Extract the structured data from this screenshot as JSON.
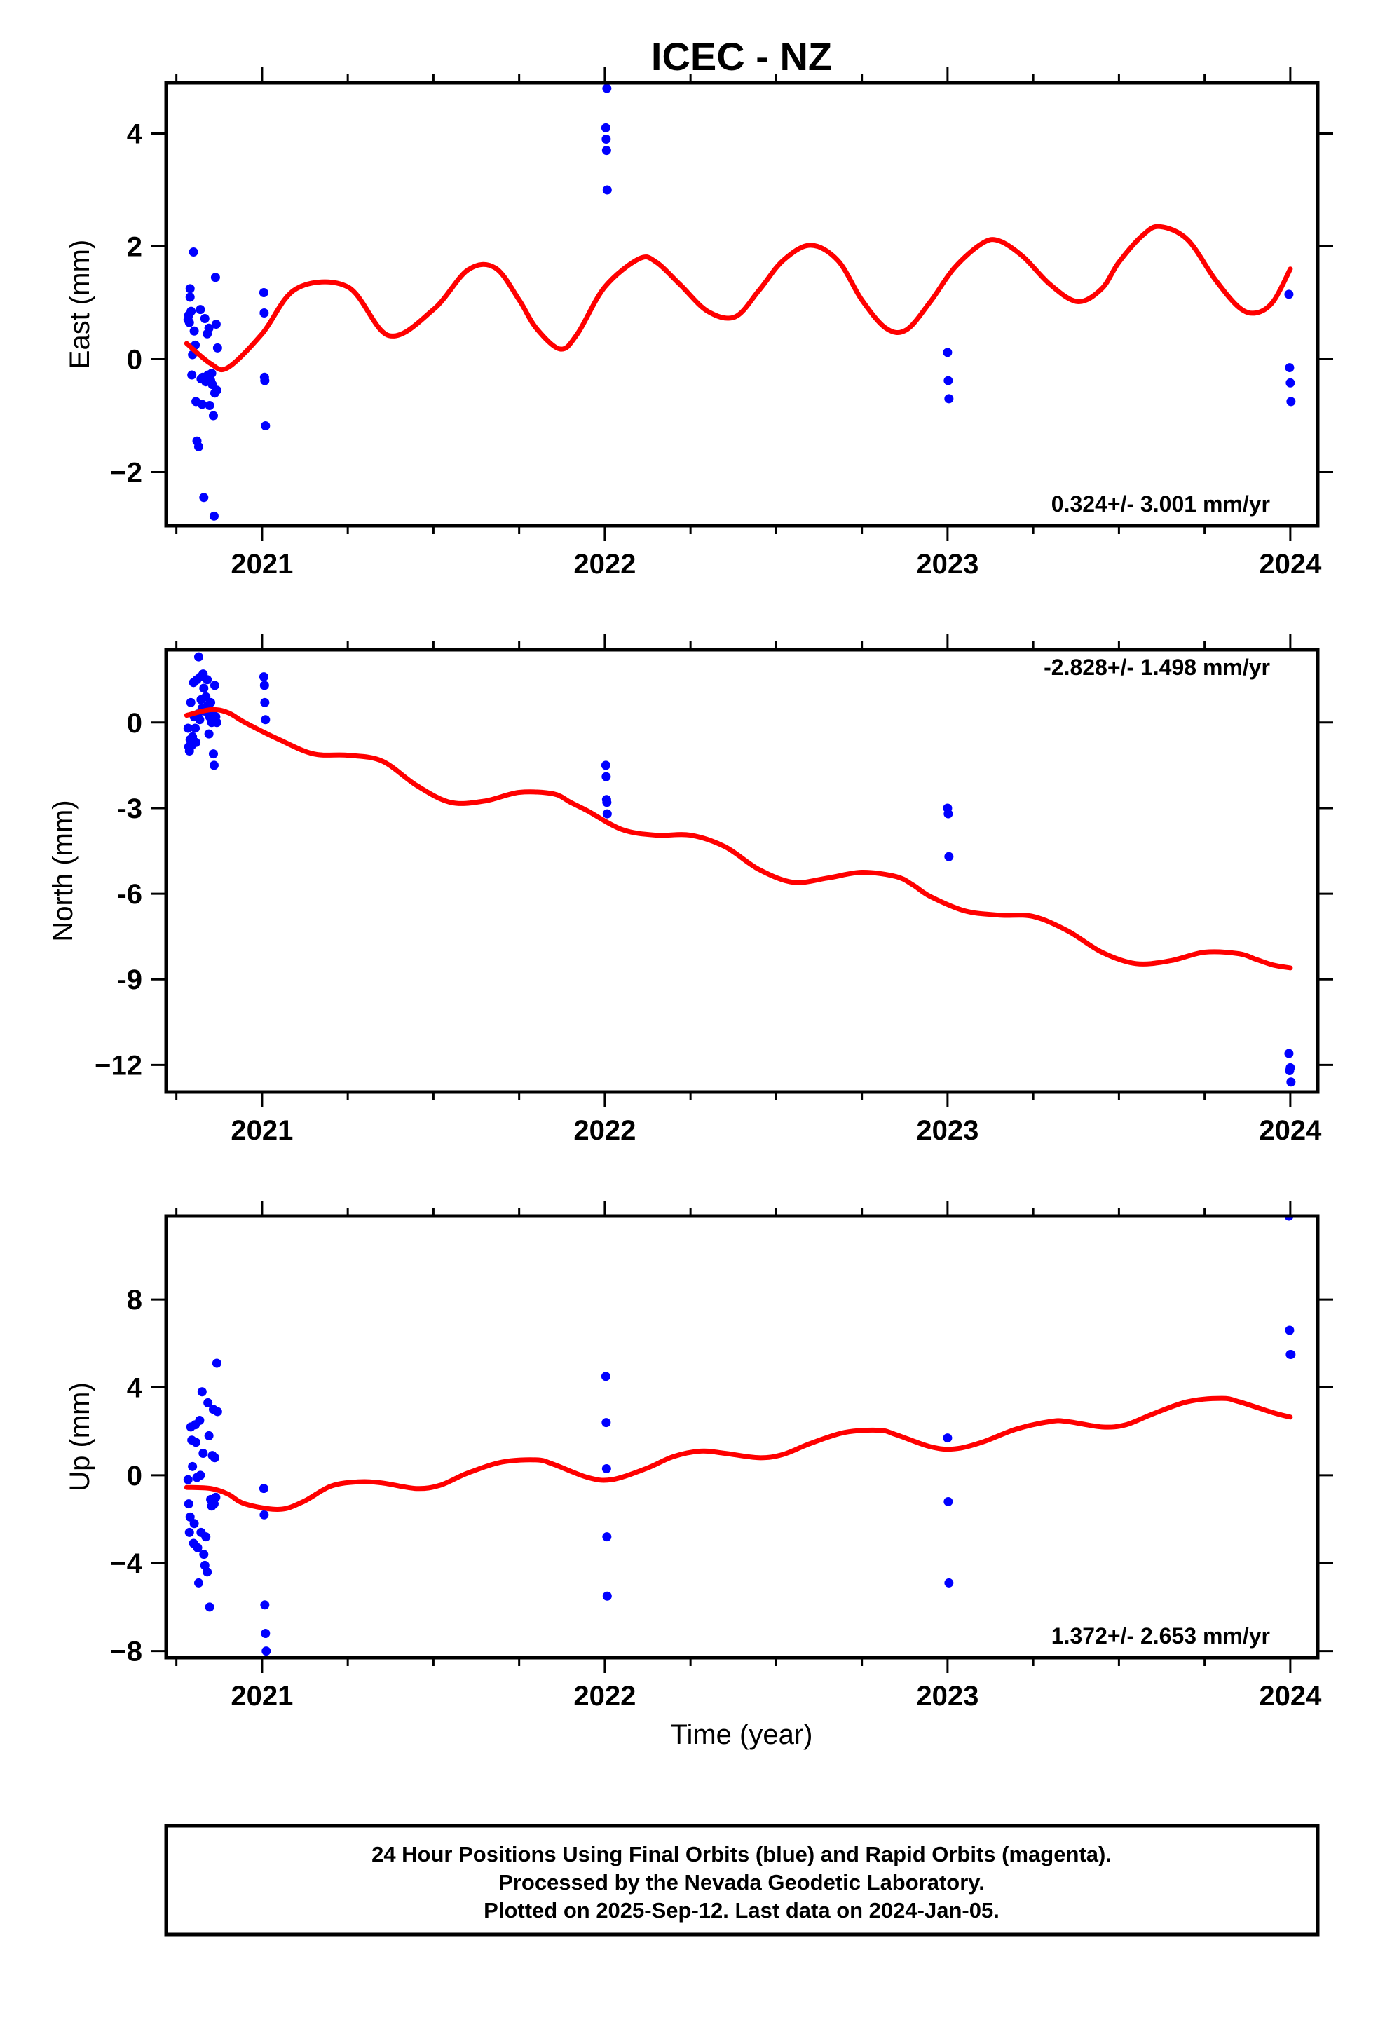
{
  "title": "ICEC - NZ",
  "xlabel": "Time (year)",
  "footer": [
    "24 Hour Positions Using Final Orbits (blue) and Rapid Orbits (magenta).",
    "Processed by the Nevada Geodetic Laboratory.",
    "Plotted on 2025-Sep-12. Last data on 2024-Jan-05."
  ],
  "colors": {
    "points": "#0000ff",
    "model": "#ff0000",
    "frame": "#000000"
  },
  "chart_data": [
    {
      "type": "scatter",
      "ylabel": "East (mm)",
      "rate": "0.324+/- 3.001 mm/yr",
      "rate_position": "bottom-right",
      "xlim": [
        2020.72,
        2024.08
      ],
      "ylim": [
        -2.95,
        4.9
      ],
      "xticks": [
        2021,
        2022,
        2023,
        2024
      ],
      "yticks": [
        -2,
        0,
        2,
        4
      ],
      "ytick_labels": [
        "−2",
        "0",
        "2",
        "4"
      ],
      "grid": false,
      "series": [
        {
          "role": "observations",
          "x": [
            2020.784,
            2020.786,
            2020.788,
            2020.79,
            2020.79,
            2020.793,
            2020.795,
            2020.797,
            2020.8,
            2020.802,
            2020.805,
            2020.807,
            2020.81,
            2020.815,
            2020.82,
            2020.822,
            2020.825,
            2020.827,
            2020.83,
            2020.833,
            2020.836,
            2020.84,
            2020.842,
            2020.845,
            2020.847,
            2020.85,
            2020.853,
            2020.855,
            2020.858,
            2020.86,
            2020.862,
            2020.864,
            2020.866,
            2020.868,
            2020.87,
            2021.005,
            2021.006,
            2021.007,
            2021.008,
            2021.01,
            2022.003,
            2022.004,
            2022.005,
            2022.006,
            2022.007,
            2023.0,
            2023.002,
            2023.004,
            2023.996,
            2023.998,
            2024.0,
            2024.002
          ],
          "y": [
            0.7,
            0.78,
            0.65,
            1.1,
            1.25,
            0.85,
            -0.28,
            0.08,
            1.9,
            0.5,
            0.25,
            -0.75,
            -1.45,
            -1.55,
            0.88,
            -0.35,
            -0.8,
            -0.32,
            -2.45,
            0.72,
            -0.4,
            0.45,
            -0.28,
            0.55,
            -0.82,
            -0.38,
            -0.25,
            -0.45,
            -1.0,
            -2.78,
            -0.6,
            1.45,
            0.62,
            -0.55,
            0.2,
            1.18,
            0.82,
            -0.32,
            -0.38,
            -1.18,
            4.1,
            3.9,
            3.7,
            4.8,
            3.0,
            0.12,
            -0.38,
            -0.7,
            1.15,
            -0.15,
            -0.42,
            -0.75
          ]
        },
        {
          "role": "model",
          "x": [
            2020.78,
            2020.85,
            2020.9,
            2021.0,
            2021.1,
            2021.25,
            2021.37,
            2021.5,
            2021.6,
            2021.68,
            2021.75,
            2021.8,
            2021.87,
            2021.92,
            2022.0,
            2022.1,
            2022.15,
            2022.22,
            2022.3,
            2022.38,
            2022.45,
            2022.52,
            2022.6,
            2022.68,
            2022.75,
            2022.82,
            2022.88,
            2022.95,
            2023.02,
            2023.1,
            2023.15,
            2023.22,
            2023.3,
            2023.38,
            2023.45,
            2023.5,
            2023.57,
            2023.62,
            2023.7,
            2023.78,
            2023.85,
            2023.9,
            2023.95,
            2024.0
          ],
          "y": [
            0.28,
            -0.08,
            -0.15,
            0.45,
            1.25,
            1.28,
            0.42,
            0.88,
            1.58,
            1.62,
            1.05,
            0.55,
            0.18,
            0.45,
            1.28,
            1.78,
            1.72,
            1.32,
            0.85,
            0.75,
            1.22,
            1.75,
            2.02,
            1.75,
            1.05,
            0.55,
            0.52,
            1.02,
            1.62,
            2.05,
            2.1,
            1.82,
            1.32,
            1.02,
            1.25,
            1.72,
            2.2,
            2.35,
            2.12,
            1.42,
            0.92,
            0.82,
            1.02,
            1.6
          ]
        }
      ]
    },
    {
      "type": "scatter",
      "ylabel": "North (mm)",
      "rate": "-2.828+/- 1.498 mm/yr",
      "rate_position": "top-right",
      "xlim": [
        2020.72,
        2024.08
      ],
      "ylim": [
        -12.95,
        2.55
      ],
      "xticks": [
        2021,
        2022,
        2023,
        2024
      ],
      "yticks": [
        -12,
        -9,
        -6,
        -3,
        0
      ],
      "ytick_labels": [
        "−12",
        "-9",
        "-6",
        "-3",
        "0"
      ],
      "grid": false,
      "series": [
        {
          "role": "observations",
          "x": [
            2020.784,
            2020.786,
            2020.788,
            2020.79,
            2020.792,
            2020.795,
            2020.797,
            2020.8,
            2020.802,
            2020.805,
            2020.807,
            2020.81,
            2020.813,
            2020.815,
            2020.818,
            2020.82,
            2020.822,
            2020.825,
            2020.828,
            2020.83,
            2020.833,
            2020.836,
            2020.84,
            2020.842,
            2020.845,
            2020.847,
            2020.85,
            2020.853,
            2020.855,
            2020.858,
            2020.86,
            2020.862,
            2020.865,
            2020.868,
            2021.005,
            2021.007,
            2021.008,
            2021.01,
            2022.003,
            2022.004,
            2022.005,
            2022.006,
            2022.007,
            2023.0,
            2023.002,
            2023.004,
            2023.996,
            2023.998,
            2024.0,
            2024.002
          ],
          "y": [
            -0.2,
            -0.85,
            -1.0,
            -0.6,
            0.7,
            -0.8,
            -0.5,
            1.4,
            0.2,
            -0.2,
            -0.7,
            1.5,
            0.3,
            2.3,
            0.1,
            1.6,
            0.8,
            0.5,
            1.7,
            1.2,
            0.4,
            0.9,
            1.5,
            0.6,
            -0.4,
            0.2,
            0.7,
            0.0,
            0.3,
            -1.1,
            -1.5,
            1.3,
            0.2,
            0.0,
            1.6,
            1.3,
            0.7,
            0.1,
            -1.5,
            -1.9,
            -2.7,
            -2.8,
            -3.2,
            -3.0,
            -3.2,
            -4.7,
            -11.6,
            -12.2,
            -12.1,
            -12.6
          ]
        },
        {
          "role": "model",
          "x": [
            2020.78,
            2020.85,
            2020.9,
            2020.95,
            2021.05,
            2021.15,
            2021.25,
            2021.35,
            2021.45,
            2021.55,
            2021.65,
            2021.75,
            2021.85,
            2021.9,
            2021.95,
            2022.05,
            2022.15,
            2022.25,
            2022.35,
            2022.45,
            2022.55,
            2022.65,
            2022.75,
            2022.85,
            2022.9,
            2022.95,
            2023.05,
            2023.15,
            2023.25,
            2023.35,
            2023.45,
            2023.55,
            2023.65,
            2023.75,
            2023.85,
            2023.9,
            2023.95,
            2024.0
          ],
          "y": [
            0.25,
            0.45,
            0.35,
            0.0,
            -0.6,
            -1.1,
            -1.15,
            -1.35,
            -2.2,
            -2.8,
            -2.75,
            -2.45,
            -2.5,
            -2.8,
            -3.1,
            -3.75,
            -3.95,
            -3.95,
            -4.35,
            -5.15,
            -5.6,
            -5.45,
            -5.25,
            -5.4,
            -5.7,
            -6.1,
            -6.6,
            -6.75,
            -6.8,
            -7.3,
            -8.05,
            -8.45,
            -8.35,
            -8.05,
            -8.1,
            -8.3,
            -8.5,
            -8.6
          ]
        }
      ]
    },
    {
      "type": "scatter",
      "ylabel": "Up (mm)",
      "rate": "1.372+/- 2.653 mm/yr",
      "rate_position": "bottom-right",
      "xlim": [
        2020.72,
        2024.08
      ],
      "ylim": [
        -8.3,
        11.8
      ],
      "xticks": [
        2021,
        2022,
        2023,
        2024
      ],
      "yticks": [
        -8,
        -4,
        0,
        4,
        8
      ],
      "ytick_labels": [
        "−8",
        "−4",
        "0",
        "4",
        "8"
      ],
      "grid": false,
      "series": [
        {
          "role": "observations",
          "x": [
            2020.784,
            2020.786,
            2020.788,
            2020.79,
            2020.792,
            2020.795,
            2020.797,
            2020.8,
            2020.802,
            2020.805,
            2020.807,
            2020.81,
            2020.812,
            2020.815,
            2020.818,
            2020.82,
            2020.822,
            2020.825,
            2020.828,
            2020.83,
            2020.833,
            2020.836,
            2020.84,
            2020.842,
            2020.845,
            2020.847,
            2020.85,
            2020.853,
            2020.855,
            2020.858,
            2020.86,
            2020.862,
            2020.865,
            2020.868,
            2020.87,
            2021.005,
            2021.006,
            2021.008,
            2021.01,
            2021.012,
            2022.003,
            2022.004,
            2022.005,
            2022.006,
            2022.007,
            2023.0,
            2023.002,
            2023.004,
            2023.996,
            2023.998,
            2024.0,
            2024.002
          ],
          "y": [
            -0.2,
            -1.3,
            -2.6,
            -1.9,
            2.2,
            1.6,
            0.4,
            -3.1,
            -2.2,
            2.3,
            1.5,
            -0.1,
            -3.3,
            -4.9,
            2.5,
            0.0,
            -2.6,
            3.8,
            1.0,
            -3.6,
            -4.1,
            -2.8,
            -4.4,
            3.3,
            1.8,
            -6.0,
            -1.1,
            -1.4,
            0.9,
            3.0,
            -1.3,
            0.8,
            -1.0,
            5.1,
            2.9,
            -0.6,
            -1.8,
            -5.9,
            -7.2,
            -8.0,
            4.5,
            2.4,
            0.3,
            -2.8,
            -5.5,
            1.7,
            -1.2,
            -4.9,
            11.8,
            6.6,
            5.5,
            5.5
          ]
        },
        {
          "role": "model",
          "x": [
            2020.78,
            2020.85,
            2020.9,
            2020.95,
            2021.05,
            2021.12,
            2021.2,
            2021.28,
            2021.35,
            2021.45,
            2021.52,
            2021.6,
            2021.7,
            2021.8,
            2021.85,
            2021.95,
            2022.02,
            2022.12,
            2022.2,
            2022.28,
            2022.35,
            2022.45,
            2022.52,
            2022.6,
            2022.7,
            2022.8,
            2022.85,
            2022.95,
            2023.02,
            2023.1,
            2023.2,
            2023.3,
            2023.35,
            2023.45,
            2023.52,
            2023.6,
            2023.7,
            2023.8,
            2023.85,
            2023.95,
            2024.0
          ],
          "y": [
            -0.55,
            -0.6,
            -0.85,
            -1.3,
            -1.55,
            -1.2,
            -0.5,
            -0.3,
            -0.35,
            -0.6,
            -0.45,
            0.1,
            0.6,
            0.7,
            0.5,
            -0.1,
            -0.2,
            0.3,
            0.85,
            1.1,
            1.0,
            0.8,
            0.95,
            1.45,
            1.95,
            2.05,
            1.85,
            1.3,
            1.2,
            1.5,
            2.1,
            2.45,
            2.45,
            2.2,
            2.3,
            2.8,
            3.35,
            3.5,
            3.35,
            2.85,
            2.65
          ]
        }
      ]
    }
  ]
}
